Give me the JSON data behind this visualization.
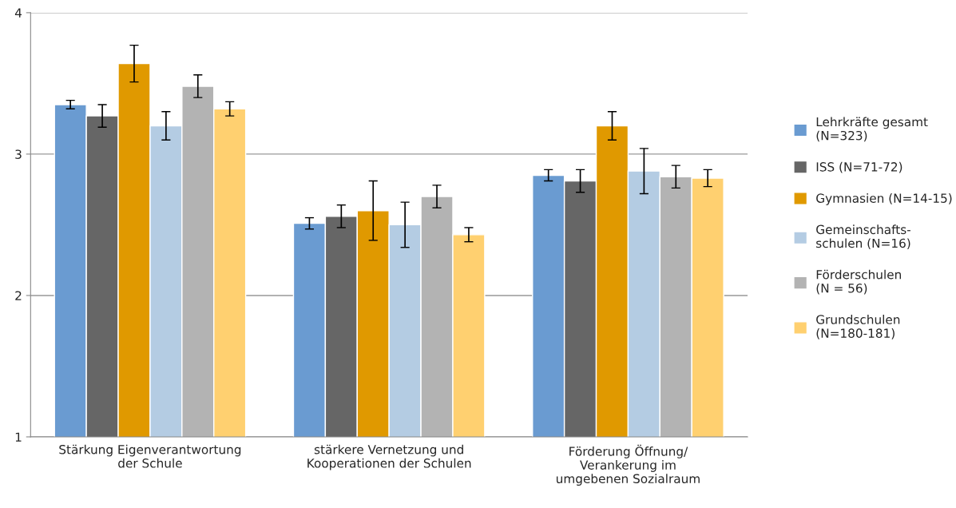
{
  "chart_data": {
    "type": "bar",
    "categories": [
      "Stärkung Eigenverantwortung\nder Schule",
      "stärkere Vernetzung und\nKooperationen der Schulen",
      "Förderung Öffnung/\nVerankerung im\numgebenen Sozialraum"
    ],
    "series": [
      {
        "name": "Lehrkräfte gesamt\n(N=323)",
        "color": "#6a9bd1",
        "values": [
          3.35,
          2.51,
          2.85
        ],
        "errors": [
          0.03,
          0.04,
          0.04
        ]
      },
      {
        "name": "ISS (N=71-72)",
        "color": "#666666",
        "values": [
          3.27,
          2.56,
          2.81
        ],
        "errors": [
          0.08,
          0.08,
          0.08
        ]
      },
      {
        "name": "Gymnasien (N=14-15)",
        "color": "#e09900",
        "values": [
          3.64,
          2.6,
          3.2
        ],
        "errors": [
          0.13,
          0.21,
          0.1
        ]
      },
      {
        "name": "Gemeinschafts-\nschulen (N=16)",
        "color": "#b4cce3",
        "values": [
          3.2,
          2.5,
          2.88
        ],
        "errors": [
          0.1,
          0.16,
          0.16
        ]
      },
      {
        "name": "Förderschulen\n(N = 56)",
        "color": "#b3b3b3",
        "values": [
          3.48,
          2.7,
          2.84
        ],
        "errors": [
          0.08,
          0.08,
          0.08
        ]
      },
      {
        "name": "Grundschulen\n(N=180-181)",
        "color": "#ffd070",
        "values": [
          3.32,
          2.43,
          2.83
        ],
        "errors": [
          0.05,
          0.05,
          0.06
        ]
      }
    ],
    "ylim": [
      1,
      4
    ],
    "yticks": [
      1,
      2,
      3,
      4
    ],
    "grid": "y",
    "legend": "right"
  }
}
